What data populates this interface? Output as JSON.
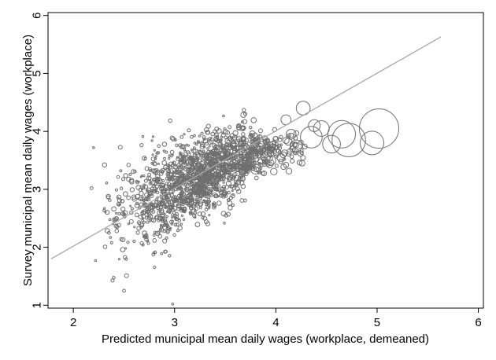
{
  "chart_data": {
    "type": "scatter",
    "title": "",
    "xlabel": "Predicted municipal mean daily wages (workplace, demeaned)",
    "ylabel": "Survey municipal mean daily wages (workplace)",
    "xlim": [
      1.75,
      6.05
    ],
    "ylim": [
      0.95,
      6.05
    ],
    "xticks": [
      2,
      3,
      4,
      5,
      6
    ],
    "yticks": [
      1,
      2,
      3,
      4,
      5,
      6
    ],
    "grid": false,
    "legend": "none",
    "colors": {
      "markers": "#6e6e6e",
      "fit_line": "#a8a8a8",
      "frame": "#000000"
    },
    "fit_line": {
      "x": [
        1.78,
        5.63
      ],
      "y": [
        1.8,
        5.63
      ]
    },
    "highlighted_points": [
      {
        "x": 4.15,
        "y": 3.95,
        "size": 5
      },
      {
        "x": 4.27,
        "y": 4.4,
        "size": 7
      },
      {
        "x": 4.35,
        "y": 3.9,
        "size": 11
      },
      {
        "x": 4.45,
        "y": 4.05,
        "size": 8
      },
      {
        "x": 4.55,
        "y": 3.78,
        "size": 9
      },
      {
        "x": 4.65,
        "y": 3.95,
        "size": 14
      },
      {
        "x": 4.72,
        "y": 3.85,
        "size": 17
      },
      {
        "x": 4.95,
        "y": 3.8,
        "size": 12
      },
      {
        "x": 5.02,
        "y": 4.05,
        "size": 20
      },
      {
        "x": 4.1,
        "y": 4.2,
        "size": 5
      },
      {
        "x": 4.38,
        "y": 4.1,
        "size": 6
      },
      {
        "x": 3.9,
        "y": 3.6,
        "size": 6
      },
      {
        "x": 3.95,
        "y": 3.5,
        "size": 5
      },
      {
        "x": 4.2,
        "y": 3.75,
        "size": 6
      },
      {
        "x": 3.8,
        "y": 3.35,
        "size": 5
      },
      {
        "x": 4.05,
        "y": 3.55,
        "size": 4
      },
      {
        "x": 2.2,
        "y": 3.72,
        "size": 1
      },
      {
        "x": 2.18,
        "y": 3.02,
        "size": 1.5
      },
      {
        "x": 2.22,
        "y": 1.77,
        "size": 1
      },
      {
        "x": 2.5,
        "y": 1.25,
        "size": 1.5
      },
      {
        "x": 2.98,
        "y": 1.02,
        "size": 1
      }
    ],
    "cloud": {
      "n_points": 1700,
      "x_range": [
        2.3,
        4.3
      ],
      "relation": "y ≈ 0.7 + 0.77·x for x<3.8, flattening near 3.75 above",
      "noise_sd": 0.32
    }
  }
}
